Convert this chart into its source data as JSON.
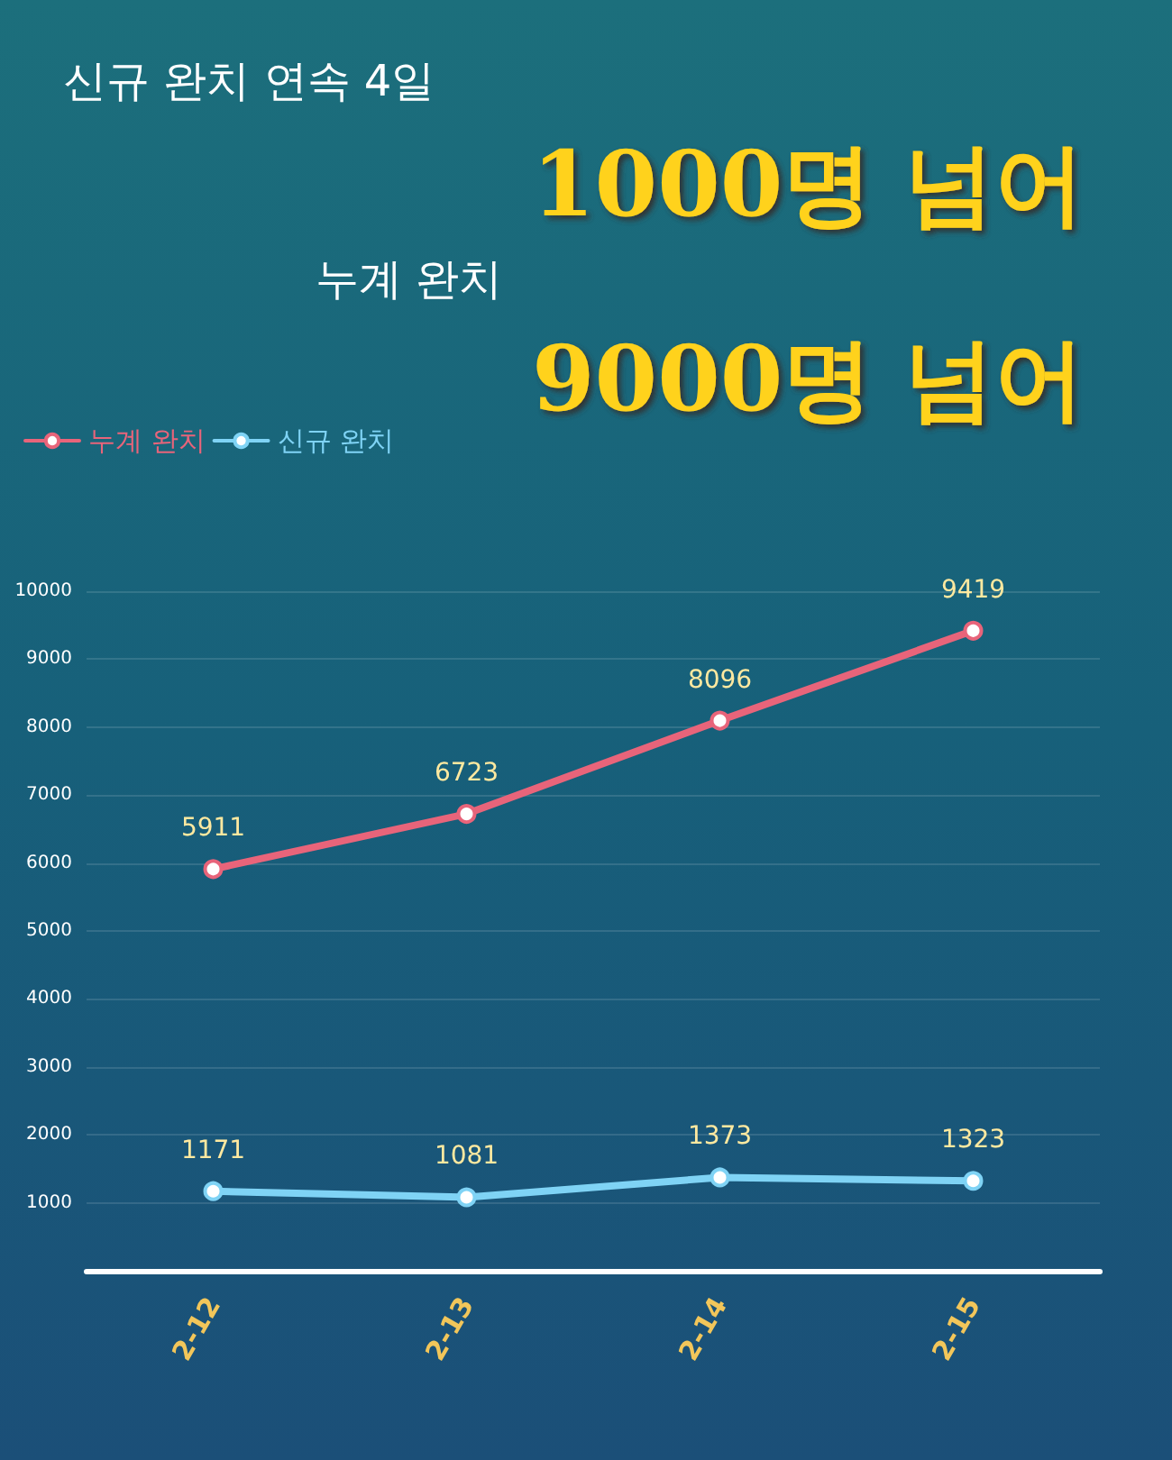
{
  "chart_data": {
    "type": "line",
    "title": "신규 완치 연속 4일",
    "subtitle": "1000명 넘어",
    "annotations": [
      "누계 완치",
      "9000명 넘어"
    ],
    "categories": [
      "2-12",
      "2-13",
      "2-14",
      "2-15"
    ],
    "series": [
      {
        "name": "누계 완치",
        "color": "#e8647a",
        "values": [
          5911,
          6723,
          8096,
          9419
        ]
      },
      {
        "name": "신규 완치",
        "color": "#7fd3f5",
        "values": [
          1171,
          1081,
          1373,
          1323
        ]
      }
    ],
    "ylim": [
      0,
      10000
    ],
    "yticks": [
      1000,
      2000,
      3000,
      4000,
      5000,
      6000,
      7000,
      8000,
      9000,
      10000
    ],
    "grid": "y",
    "legend": "top left",
    "marker": "circle",
    "line_style": "solid",
    "data_labels": true
  }
}
